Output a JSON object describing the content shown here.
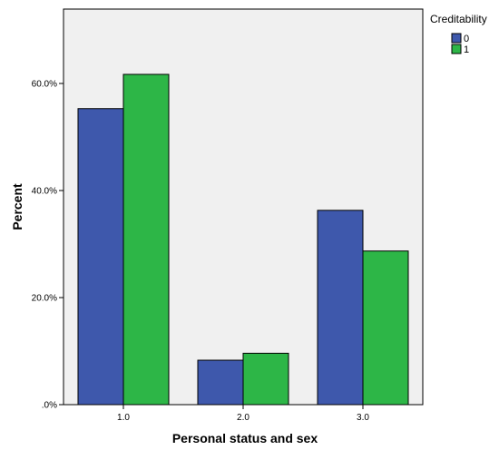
{
  "chart_data": {
    "type": "bar",
    "categories": [
      "1.0",
      "2.0",
      "3.0"
    ],
    "series": [
      {
        "name": "0",
        "color": "#3e58ac",
        "values": [
          55.3,
          8.3,
          36.3
        ]
      },
      {
        "name": "1",
        "color": "#2db647",
        "values": [
          61.7,
          9.6,
          28.7
        ]
      }
    ],
    "xlabel": "Personal status and sex",
    "ylabel": "Percent",
    "ylim": [
      0,
      73.9
    ],
    "yticks": [
      0,
      20,
      40,
      60
    ],
    "ytick_labels": [
      ".0%",
      "20.0%",
      "40.0%",
      "60.0%"
    ],
    "legend": {
      "title": "Creditability",
      "placement": "top-right"
    },
    "plot_background": "#f0f0f0",
    "grid": false
  }
}
